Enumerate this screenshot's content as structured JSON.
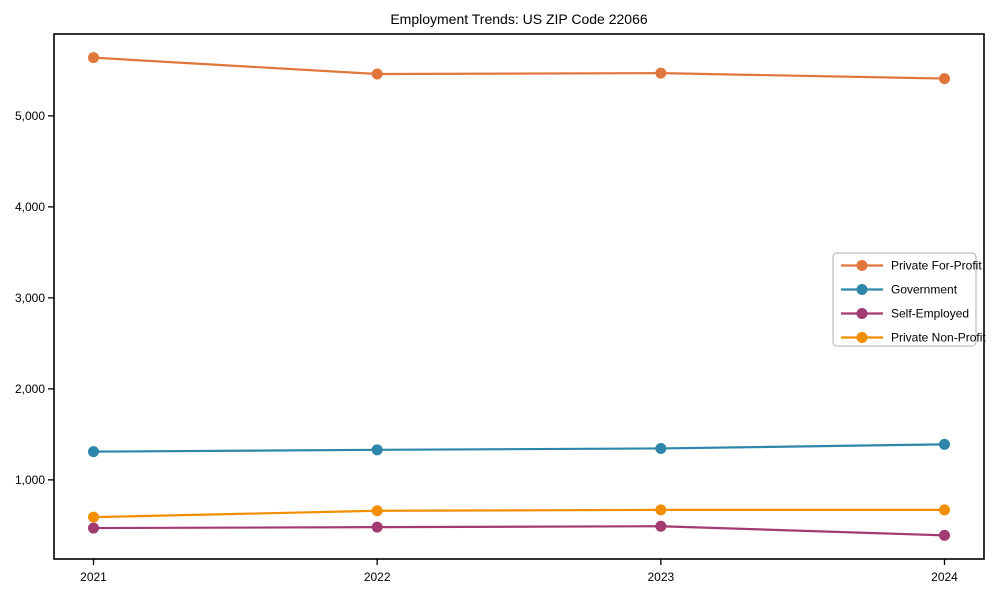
{
  "chart_data": {
    "type": "line",
    "title": "Employment Trends: US ZIP Code 22066",
    "categories": [
      "2021",
      "2022",
      "2023",
      "2024"
    ],
    "series": [
      {
        "name": "Private For-Profit",
        "color": "#E0763C",
        "values": [
          5640,
          5460,
          5470,
          5410
        ]
      },
      {
        "name": "Government",
        "color": "#2E86AB",
        "values": [
          1310,
          1330,
          1345,
          1390
        ]
      },
      {
        "name": "Self-Employed",
        "color": "#A23B72",
        "values": [
          470,
          480,
          490,
          390
        ]
      },
      {
        "name": "Private Non-Profit",
        "color": "#F18F01",
        "values": [
          590,
          660,
          670,
          670
        ]
      }
    ],
    "xlabel": "",
    "ylabel": "",
    "ylim": [
      130,
      5900
    ],
    "yticks": [
      1000,
      2000,
      3000,
      4000,
      5000
    ],
    "ytick_labels": [
      "1,000",
      "2,000",
      "3,000",
      "4,000",
      "5,000"
    ],
    "grid": false,
    "legend_position": "center-right",
    "marker": "circle",
    "frame": true
  }
}
